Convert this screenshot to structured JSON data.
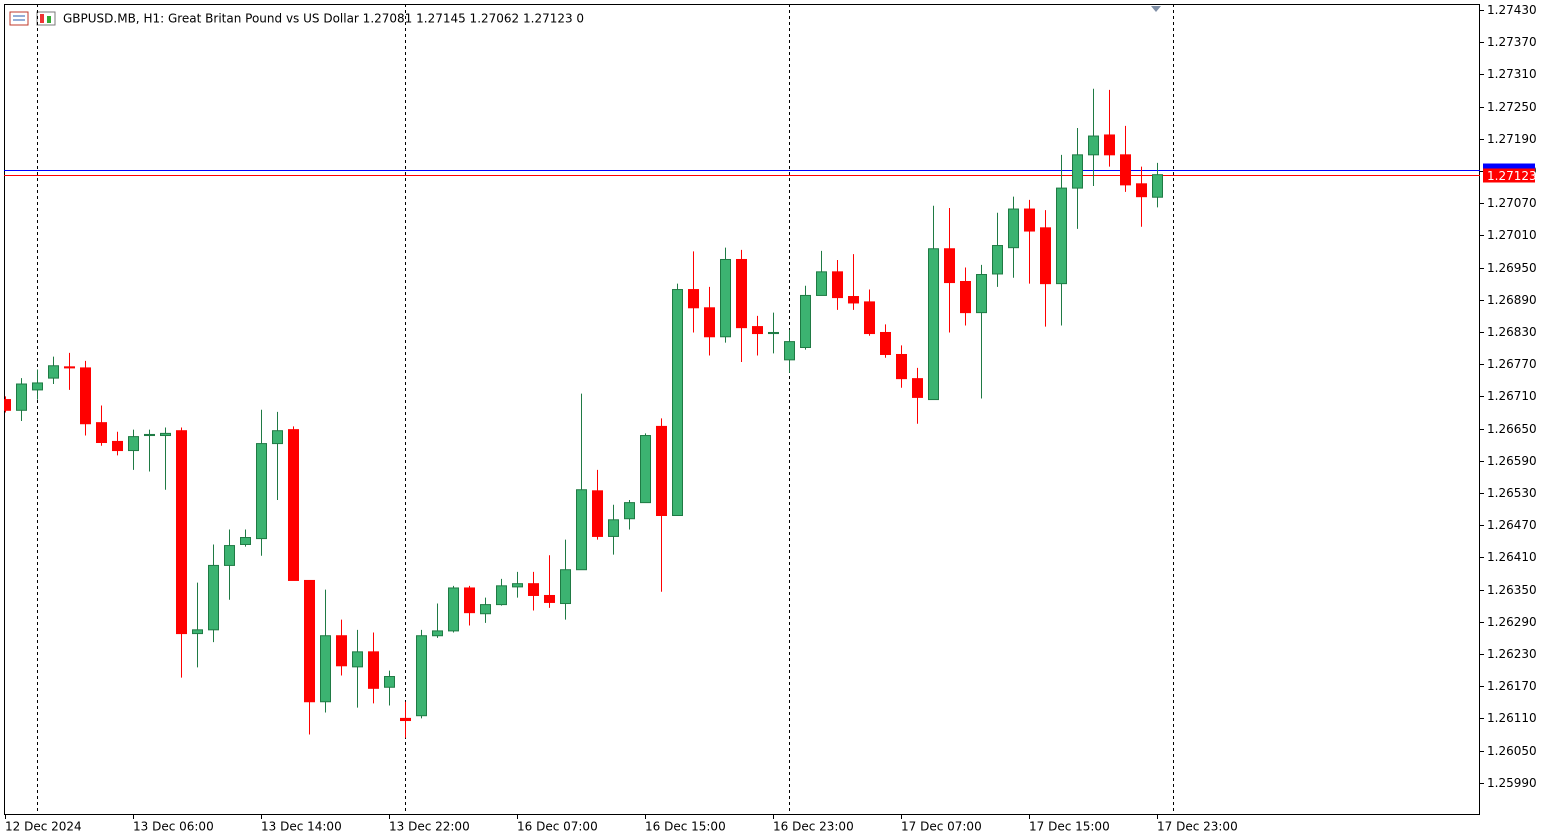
{
  "chart_data": {
    "type": "candlestick",
    "title": "GBPUSD.MB, H1:  Great Britan Pound vs US Dollar  1.27081 1.27145 1.27062 1.27123  0",
    "categories": [
      "12 Dec 2024",
      null,
      null,
      null,
      null,
      null,
      null,
      null,
      "13 Dec 06:00",
      null,
      null,
      null,
      null,
      null,
      null,
      null,
      "13 Dec 14:00",
      null,
      null,
      null,
      null,
      null,
      null,
      null,
      "13 Dec 22:00",
      null,
      null,
      null,
      null,
      null,
      null,
      null,
      "16 Dec 07:00",
      null,
      null,
      null,
      null,
      null,
      null,
      null,
      "16 Dec 15:00",
      null,
      null,
      null,
      null,
      null,
      null,
      null,
      "16 Dec 23:00",
      null,
      null,
      null,
      null,
      null,
      null,
      null,
      "17 Dec 07:00",
      null,
      null,
      null,
      null,
      null,
      null,
      null,
      "17 Dec 15:00",
      null,
      null,
      null,
      null,
      null,
      null,
      null,
      "17 Dec 23:00"
    ],
    "open": [
      1.26704,
      1.26684,
      1.26722,
      1.26744,
      1.26765,
      1.26763,
      1.26661,
      1.26626,
      1.26609,
      1.26637,
      1.26637,
      1.26646,
      1.26268,
      1.26275,
      1.26395,
      1.26434,
      1.26445,
      1.26622,
      1.26648,
      1.26367,
      1.26141,
      1.26264,
      1.26206,
      1.26234,
      1.26168,
      1.2611,
      1.26115,
      1.26264,
      1.26273,
      1.26353,
      1.26305,
      1.26322,
      1.26355,
      1.26361,
      1.26339,
      1.26324,
      1.26387,
      1.26534,
      1.26449,
      1.26482,
      1.26512,
      1.26654,
      1.26488,
      1.26909,
      1.26875,
      1.26821,
      1.26965,
      1.2684,
      1.26827,
      1.26778,
      1.26801,
      1.26898,
      1.26942,
      1.26896,
      1.26886,
      1.26829,
      1.26788,
      1.26743,
      1.26704,
      1.26985,
      1.26924,
      1.26866,
      1.26938,
      1.26987,
      1.27059,
      1.27024,
      1.2692,
      1.27098,
      1.2716,
      1.27197,
      1.2716,
      1.27106,
      1.27081
    ],
    "high": [
      1.2671,
      1.26744,
      1.2676,
      1.26784,
      1.26791,
      1.26776,
      1.26693,
      1.26644,
      1.26648,
      1.26648,
      1.26652,
      1.26652,
      1.26363,
      1.26434,
      1.26462,
      1.26462,
      1.26685,
      1.26681,
      1.26654,
      1.26367,
      1.2635,
      1.26294,
      1.26275,
      1.2627,
      1.26199,
      1.26141,
      1.26275,
      1.26324,
      1.26357,
      1.26357,
      1.26335,
      1.2637,
      1.26383,
      1.26383,
      1.26414,
      1.26443,
      1.26715,
      1.26573,
      1.26508,
      1.26517,
      1.26641,
      1.26669,
      1.2692,
      1.2698,
      1.26914,
      1.26987,
      1.26983,
      1.2686,
      1.26866,
      1.26834,
      1.26916,
      1.26981,
      1.26964,
      1.26975,
      1.26909,
      1.26844,
      1.26805,
      1.26763,
      1.27065,
      1.27061,
      1.2695,
      1.26955,
      1.27052,
      1.27082,
      1.27076,
      1.27057,
      1.2716,
      1.2721,
      1.27283,
      1.27281,
      1.27214,
      1.27138,
      1.27145
    ],
    "low": [
      1.2668,
      1.26664,
      1.26704,
      1.26733,
      1.26722,
      1.26637,
      1.26618,
      1.266,
      1.26573,
      1.2657,
      1.26536,
      1.26186,
      1.26205,
      1.26252,
      1.26331,
      1.2643,
      1.26413,
      1.26517,
      1.26367,
      1.2608,
      1.26121,
      1.2619,
      1.2613,
      1.26138,
      1.26134,
      1.26074,
      1.2611,
      1.2626,
      1.2627,
      1.26283,
      1.26288,
      1.2632,
      1.26335,
      1.26311,
      1.26316,
      1.26294,
      1.26387,
      1.26443,
      1.26415,
      1.26462,
      1.26512,
      1.26346,
      1.26488,
      1.26829,
      1.26786,
      1.2681,
      1.26774,
      1.26786,
      1.2679,
      1.26754,
      1.26797,
      1.26898,
      1.26871,
      1.26871,
      1.26823,
      1.26782,
      1.26726,
      1.26659,
      1.26704,
      1.26829,
      1.26842,
      1.26706,
      1.26914,
      1.26931,
      1.2692,
      1.2684,
      1.26842,
      1.27022,
      1.27102,
      1.27138,
      1.27091,
      1.27026,
      1.27062
    ],
    "close": [
      1.26684,
      1.26733,
      1.26735,
      1.26767,
      1.26763,
      1.26659,
      1.26624,
      1.26609,
      1.26635,
      1.26639,
      1.26641,
      1.26268,
      1.26275,
      1.26395,
      1.26432,
      1.26447,
      1.26622,
      1.26646,
      1.26367,
      1.26141,
      1.26264,
      1.26208,
      1.26234,
      1.26166,
      1.26188,
      1.26106,
      1.26264,
      1.26273,
      1.26353,
      1.26307,
      1.26322,
      1.26357,
      1.26361,
      1.26339,
      1.26326,
      1.26387,
      1.26536,
      1.26449,
      1.2648,
      1.26512,
      1.26637,
      1.26488,
      1.26909,
      1.26875,
      1.26821,
      1.26965,
      1.26838,
      1.26827,
      1.26829,
      1.26812,
      1.26898,
      1.26942,
      1.26894,
      1.26884,
      1.26827,
      1.26788,
      1.26743,
      1.26708,
      1.26985,
      1.26922,
      1.26866,
      1.26937,
      1.26991,
      1.27059,
      1.27018,
      1.2692,
      1.27098,
      1.2716,
      1.27195,
      1.2716,
      1.27104,
      1.27082,
      1.27123
    ],
    "up_color": "#3cb371",
    "up_border": "#1f7a44",
    "down_color": "#ff0000",
    "bid_line": 1.27123,
    "bid_label": "1.27123",
    "ask_line": 1.27131,
    "ask_color": "#0000ff",
    "ylim": [
      1.2593,
      1.27441
    ],
    "yticks": [
      {
        "value": 1.2599,
        "label": "1.25990"
      },
      {
        "value": 1.2605,
        "label": "1.26050"
      },
      {
        "value": 1.2611,
        "label": "1.26110"
      },
      {
        "value": 1.2617,
        "label": "1.26170"
      },
      {
        "value": 1.2623,
        "label": "1.26230"
      },
      {
        "value": 1.2629,
        "label": "1.26290"
      },
      {
        "value": 1.2635,
        "label": "1.26350"
      },
      {
        "value": 1.2641,
        "label": "1.26410"
      },
      {
        "value": 1.2647,
        "label": "1.26470"
      },
      {
        "value": 1.2653,
        "label": "1.26530"
      },
      {
        "value": 1.2659,
        "label": "1.26590"
      },
      {
        "value": 1.2665,
        "label": "1.26650"
      },
      {
        "value": 1.2671,
        "label": "1.26710"
      },
      {
        "value": 1.2677,
        "label": "1.26770"
      },
      {
        "value": 1.2683,
        "label": "1.26830"
      },
      {
        "value": 1.2689,
        "label": "1.26890"
      },
      {
        "value": 1.2695,
        "label": "1.26950"
      },
      {
        "value": 1.2701,
        "label": "1.27010"
      },
      {
        "value": 1.2707,
        "label": "1.27070"
      },
      {
        "value": 1.2713,
        "label": "1.27130"
      },
      {
        "value": 1.2719,
        "label": "1.27190"
      },
      {
        "value": 1.2725,
        "label": "1.27250"
      },
      {
        "value": 1.2731,
        "label": "1.27310"
      },
      {
        "value": 1.2737,
        "label": "1.27370"
      },
      {
        "value": 1.2743,
        "label": "1.27430"
      }
    ],
    "grid": false
  }
}
